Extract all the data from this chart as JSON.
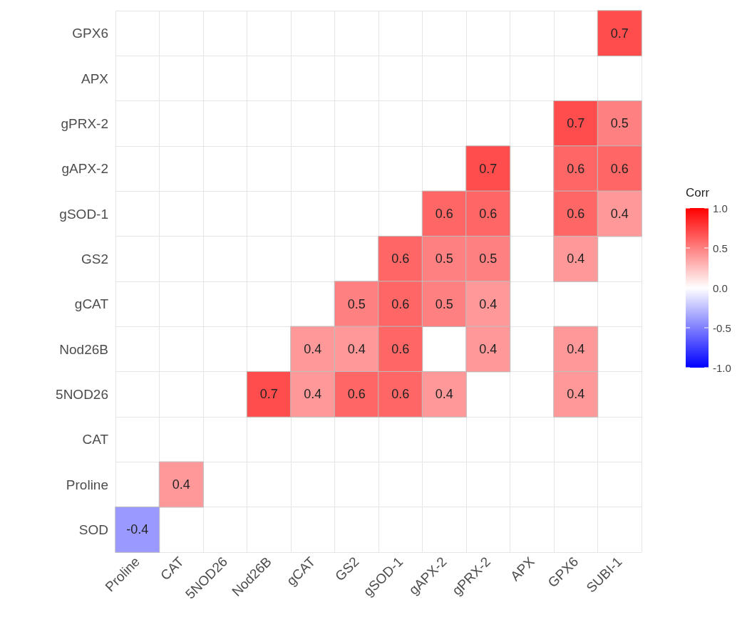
{
  "chart_data": {
    "type": "heatmap",
    "clabel": "Corr",
    "categories": [
      "Proline",
      "CAT",
      "5NOD26",
      "Nod26B",
      "gCAT",
      "GS2",
      "gSOD-1",
      "gAPX-2",
      "gPRX-2",
      "APX",
      "GPX6",
      "SUBI-1"
    ],
    "y_categories": [
      "GPX6",
      "APX",
      "gPRX-2",
      "gAPX-2",
      "gSOD-1",
      "GS2",
      "gCAT",
      "Nod26B",
      "5NOD26",
      "CAT",
      "Proline",
      "SOD"
    ],
    "cells": [
      [
        null,
        null,
        null,
        null,
        null,
        null,
        null,
        null,
        null,
        null,
        null,
        0.7
      ],
      [
        null,
        null,
        null,
        null,
        null,
        null,
        null,
        null,
        null,
        null,
        null,
        null
      ],
      [
        null,
        null,
        null,
        null,
        null,
        null,
        null,
        null,
        null,
        null,
        0.7,
        0.5
      ],
      [
        null,
        null,
        null,
        null,
        null,
        null,
        null,
        null,
        0.7,
        null,
        0.6,
        0.6
      ],
      [
        null,
        null,
        null,
        null,
        null,
        null,
        null,
        0.6,
        0.6,
        null,
        0.6,
        0.4
      ],
      [
        null,
        null,
        null,
        null,
        null,
        null,
        0.6,
        0.5,
        0.5,
        null,
        0.4,
        null
      ],
      [
        null,
        null,
        null,
        null,
        null,
        0.5,
        0.6,
        0.5,
        0.4,
        null,
        null,
        null
      ],
      [
        null,
        null,
        null,
        null,
        0.4,
        0.4,
        0.6,
        null,
        0.4,
        null,
        0.4,
        null
      ],
      [
        null,
        null,
        null,
        0.7,
        0.4,
        0.6,
        0.6,
        0.4,
        null,
        null,
        0.4,
        null
      ],
      [
        null,
        null,
        null,
        null,
        null,
        null,
        null,
        null,
        null,
        null,
        null,
        null
      ],
      [
        null,
        0.4,
        null,
        null,
        null,
        null,
        null,
        null,
        null,
        null,
        null,
        null
      ],
      [
        -0.4,
        null,
        null,
        null,
        null,
        null,
        null,
        null,
        null,
        null,
        null,
        null
      ]
    ],
    "clim": [
      -1,
      1
    ],
    "cticks": [
      {
        "value": -1,
        "label": "-1.0"
      },
      {
        "value": -0.5,
        "label": "-0.5"
      },
      {
        "value": 0,
        "label": "0.0"
      },
      {
        "value": 0.5,
        "label": "0.5"
      },
      {
        "value": 1,
        "label": "1.0"
      }
    ],
    "data_labels": true,
    "grid": true
  }
}
